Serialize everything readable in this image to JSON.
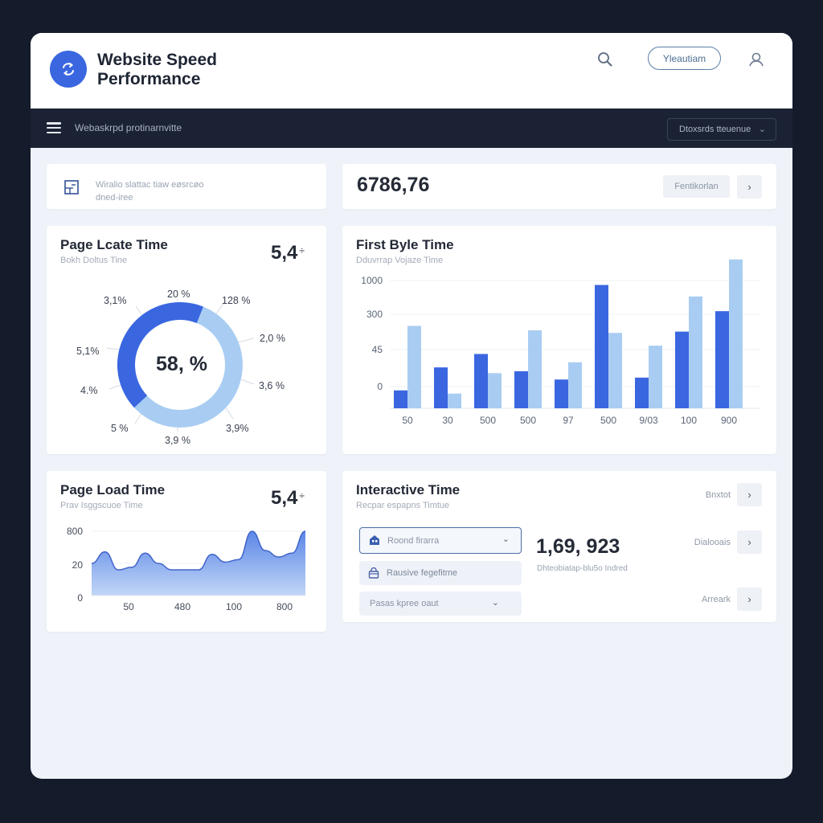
{
  "header": {
    "title_line1": "Website Speed",
    "title_line2": "Performance",
    "button_label": "Yleautiam",
    "icons": {
      "logo": "sync-arrows-icon",
      "search": "search-icon",
      "user": "user-icon"
    }
  },
  "navbar": {
    "label": "Webaskrpd protinarnvitte",
    "select_value": "Dtoxsrds tteuenue",
    "icons": {
      "menu": "hamburger-icon",
      "select": "chevron-down-icon"
    }
  },
  "info_card": {
    "line1": "Wiralio slattac tiaw eøsrcøo",
    "line2": "dned-iree",
    "icon": "layout-icon"
  },
  "summary_card": {
    "value": "6786,76",
    "button_label": "Fentikorlan",
    "arrow": "›"
  },
  "donut_card": {
    "title": "Page Lcate Time",
    "subtitle": "Bokh Doltus Tine",
    "metric": "5,4",
    "metric_suffix": "÷",
    "center_value": "58, %",
    "labels": [
      "20 %",
      "128 %",
      "2,0 %",
      "3,6 %",
      "3,9%",
      "3,9 %",
      "5 %",
      "4.%",
      "5,1%",
      "3,1%"
    ]
  },
  "bar_card": {
    "title": "First Byle Time",
    "subtitle": "Dduvrrap Vojaze Time"
  },
  "area_card": {
    "title": "Page Load Time",
    "subtitle": "Prav  Isggscuoe  Time",
    "metric": "5,4",
    "metric_suffix": "÷"
  },
  "interactive_card": {
    "title": "Interactive Time",
    "subtitle": "Recpar espapns Timtue",
    "select_active": "Roond firarra",
    "select_b": "Rausive fegefitme",
    "select_c": "Pasas kpree oaut",
    "kpi_value": "1,69, 923",
    "kpi_sub": "Dhteobiatap-blu5o Indred",
    "side_items": [
      {
        "label": "Bnxtot",
        "arrow": "›"
      },
      {
        "label": "Dialooais",
        "arrow": "›"
      },
      {
        "label": "Arreark",
        "arrow": "›"
      }
    ]
  },
  "colors": {
    "primary": "#3a66e0",
    "light": "#a9cdf2",
    "nav_bg": "#1b2233",
    "page_bg": "#141b2b",
    "content_bg": "#eff3f9"
  },
  "chart_data": [
    {
      "type": "pie",
      "title": "Page Lcate Time",
      "center_label": "58, %",
      "series": [
        {
          "name": "dark segment",
          "value": 43,
          "color": "#3a66e0"
        },
        {
          "name": "light segment",
          "value": 57,
          "color": "#a9cdf2"
        }
      ],
      "annotations": [
        "20 %",
        "128 %",
        "2,0 %",
        "3,6 %",
        "3,9%",
        "3,9 %",
        "5 %",
        "4.%",
        "5,1%",
        "3,1%"
      ]
    },
    {
      "type": "bar",
      "title": "First Byle Time",
      "categories": [
        "50",
        "30",
        "500",
        "500",
        "97",
        "500",
        "9/03",
        "100",
        "900"
      ],
      "y_tick_labels": [
        "1000",
        "300",
        "45",
        "0"
      ],
      "y_tick_positions": [
        1000,
        736,
        459,
        170
      ],
      "ylim": [
        0,
        1160
      ],
      "grid": true,
      "series": [
        {
          "name": "dark",
          "color": "#3a66e0",
          "values": [
            140,
            320,
            425,
            290,
            225,
            965,
            240,
            600,
            760
          ]
        },
        {
          "name": "light",
          "color": "#a9cdf2",
          "values": [
            645,
            115,
            275,
            610,
            360,
            590,
            490,
            875,
            1165
          ]
        }
      ]
    },
    {
      "type": "area",
      "title": "Page Load Time",
      "x_tick_labels": [
        "50",
        "480",
        "100",
        "800"
      ],
      "y_tick_labels": [
        "800",
        "20",
        "0"
      ],
      "x": [
        0,
        1,
        2,
        3,
        4,
        5,
        6,
        7,
        8,
        9,
        10,
        11,
        12,
        13,
        14,
        15,
        16
      ],
      "values": [
        50,
        68,
        40,
        44,
        66,
        50,
        40,
        40,
        40,
        64,
        52,
        56,
        100,
        70,
        60,
        66,
        100
      ],
      "ylim": [
        0,
        100
      ],
      "grid": true
    }
  ]
}
